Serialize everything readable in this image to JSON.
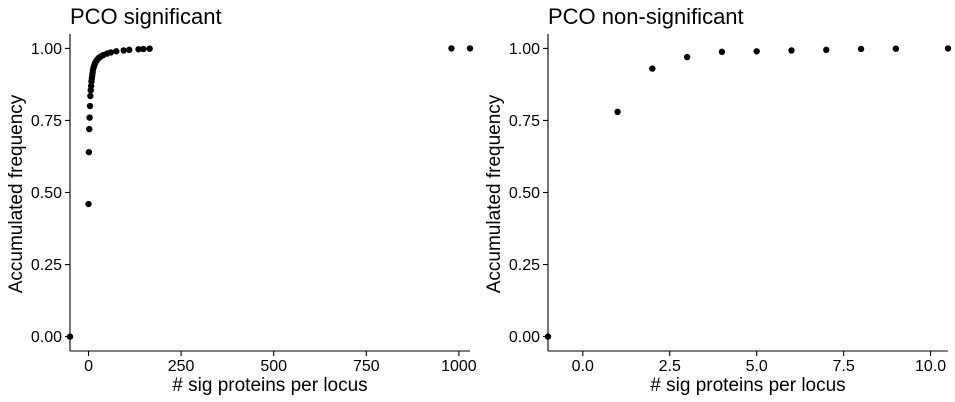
{
  "chart_data": [
    {
      "type": "scatter",
      "title": "PCO significant",
      "xlabel": "# sig proteins per locus",
      "ylabel": "Accumulated frequency",
      "xlim": [
        -50,
        1030
      ],
      "ylim": [
        -0.05,
        1.05
      ],
      "xticks": [
        0,
        250,
        500,
        750,
        1000
      ],
      "xtick_labels": [
        "0",
        "250",
        "500",
        "750",
        "1000"
      ],
      "yticks": [
        0,
        0.25,
        0.5,
        0.75,
        1
      ],
      "ytick_labels": [
        "0.00",
        "0.25",
        "0.50",
        "0.75",
        "1.00"
      ],
      "grid": false,
      "points": [
        {
          "x": -50,
          "y": 0.0
        },
        {
          "x": 0,
          "y": 0.46
        },
        {
          "x": 1,
          "y": 0.64
        },
        {
          "x": 2,
          "y": 0.72
        },
        {
          "x": 3,
          "y": 0.76
        },
        {
          "x": 4,
          "y": 0.8
        },
        {
          "x": 5,
          "y": 0.835
        },
        {
          "x": 6,
          "y": 0.855
        },
        {
          "x": 7,
          "y": 0.87
        },
        {
          "x": 8,
          "y": 0.885
        },
        {
          "x": 9,
          "y": 0.895
        },
        {
          "x": 10,
          "y": 0.905
        },
        {
          "x": 11,
          "y": 0.915
        },
        {
          "x": 12,
          "y": 0.925
        },
        {
          "x": 14,
          "y": 0.935
        },
        {
          "x": 16,
          "y": 0.943
        },
        {
          "x": 18,
          "y": 0.95
        },
        {
          "x": 21,
          "y": 0.956
        },
        {
          "x": 24,
          "y": 0.962
        },
        {
          "x": 28,
          "y": 0.967
        },
        {
          "x": 33,
          "y": 0.972
        },
        {
          "x": 40,
          "y": 0.977
        },
        {
          "x": 50,
          "y": 0.982
        },
        {
          "x": 60,
          "y": 0.986
        },
        {
          "x": 75,
          "y": 0.99
        },
        {
          "x": 95,
          "y": 0.993
        },
        {
          "x": 110,
          "y": 0.995
        },
        {
          "x": 135,
          "y": 0.997
        },
        {
          "x": 148,
          "y": 0.998
        },
        {
          "x": 165,
          "y": 0.999
        },
        {
          "x": 980,
          "y": 1.0
        },
        {
          "x": 1030,
          "y": 1.0
        }
      ]
    },
    {
      "type": "scatter",
      "title": "PCO non-significant",
      "xlabel": "# sig proteins per locus",
      "ylabel": "Accumulated frequency",
      "xlim": [
        -1,
        10.5
      ],
      "ylim": [
        -0.05,
        1.05
      ],
      "xticks": [
        0,
        2.5,
        5,
        7.5,
        10
      ],
      "xtick_labels": [
        "0.0",
        "2.5",
        "5.0",
        "7.5",
        "10.0"
      ],
      "yticks": [
        0,
        0.25,
        0.5,
        0.75,
        1
      ],
      "ytick_labels": [
        "0.00",
        "0.25",
        "0.50",
        "0.75",
        "1.00"
      ],
      "grid": false,
      "points": [
        {
          "x": -1,
          "y": 0.0
        },
        {
          "x": 1,
          "y": 0.78
        },
        {
          "x": 2,
          "y": 0.93
        },
        {
          "x": 3,
          "y": 0.97
        },
        {
          "x": 4,
          "y": 0.988
        },
        {
          "x": 5,
          "y": 0.99
        },
        {
          "x": 6,
          "y": 0.993
        },
        {
          "x": 7,
          "y": 0.995
        },
        {
          "x": 8,
          "y": 0.998
        },
        {
          "x": 9,
          "y": 0.999
        },
        {
          "x": 10.5,
          "y": 1.0
        }
      ]
    }
  ]
}
